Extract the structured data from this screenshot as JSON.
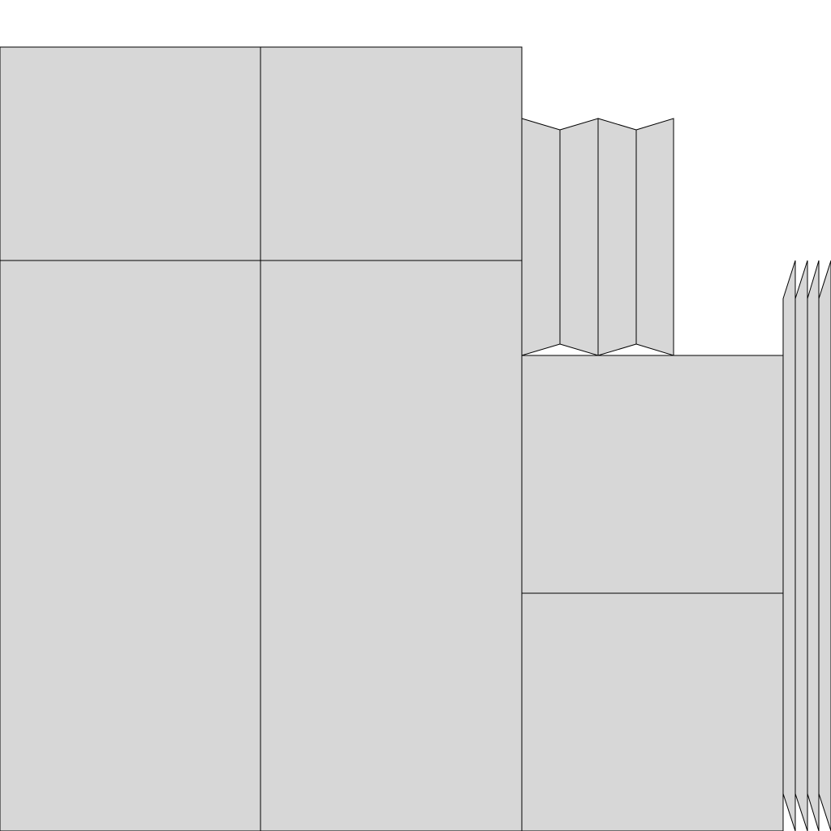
{
  "diagram": {
    "fill_color": "#d7d7d7",
    "stroke_color": "#000000",
    "background": "#ffffff"
  }
}
